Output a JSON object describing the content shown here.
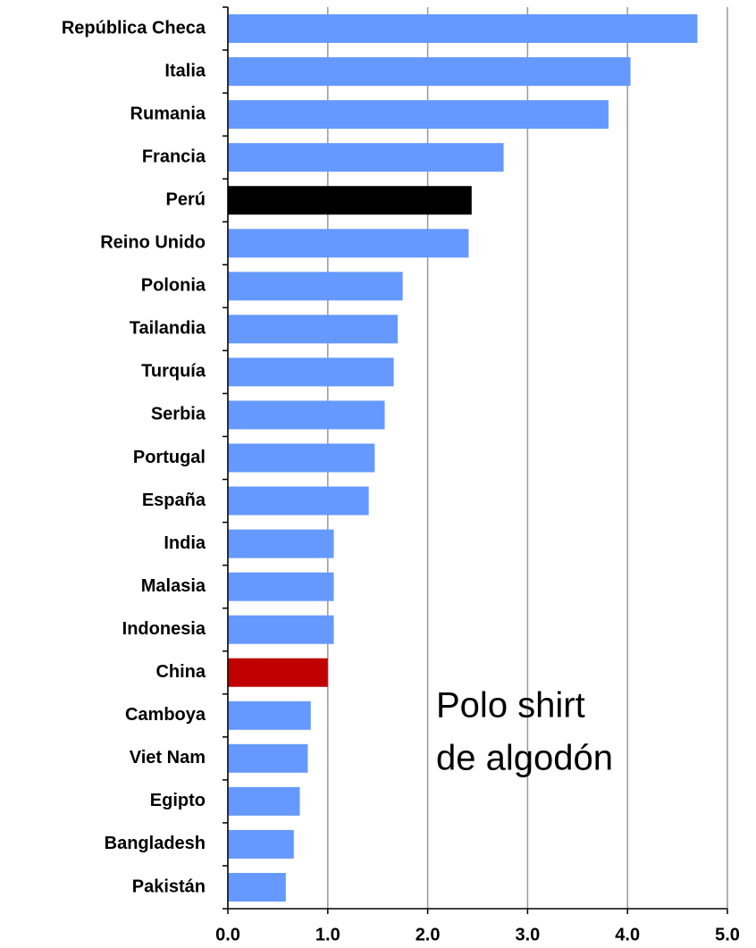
{
  "chart_data": {
    "type": "barh",
    "categories": [
      "República Checa",
      "Italia",
      "Rumania",
      "Francia",
      "Perú",
      "Reino Unido",
      "Polonia",
      "Tailandia",
      "Turquía",
      "Serbia",
      "Portugal",
      "España",
      "India",
      "Malasia",
      "Indonesia",
      "China",
      "Camboya",
      "Viet Nam",
      "Egipto",
      "Bangladesh",
      "Pakistán"
    ],
    "values": [
      4.7,
      4.03,
      3.81,
      2.76,
      2.44,
      2.41,
      1.75,
      1.7,
      1.66,
      1.57,
      1.47,
      1.41,
      1.06,
      1.06,
      1.06,
      1.0,
      0.83,
      0.8,
      0.72,
      0.66,
      0.58
    ],
    "colors": [
      "#6699ff",
      "#6699ff",
      "#6699ff",
      "#6699ff",
      "#000000",
      "#6699ff",
      "#6699ff",
      "#6699ff",
      "#6699ff",
      "#6699ff",
      "#6699ff",
      "#6699ff",
      "#6699ff",
      "#6699ff",
      "#6699ff",
      "#c00000",
      "#6699ff",
      "#6699ff",
      "#6699ff",
      "#6699ff",
      "#6699ff"
    ],
    "xlim": [
      0,
      5
    ],
    "xticks": [
      {
        "value": 0,
        "label": "0.0"
      },
      {
        "value": 1,
        "label": "1.0"
      },
      {
        "value": 2,
        "label": "2.0"
      },
      {
        "value": 3,
        "label": "3.0"
      },
      {
        "value": 4,
        "label": "4.0"
      },
      {
        "value": 5,
        "label": "5.0"
      }
    ],
    "grid": true,
    "annotation": [
      "Polo shirt",
      "de algodón"
    ]
  }
}
